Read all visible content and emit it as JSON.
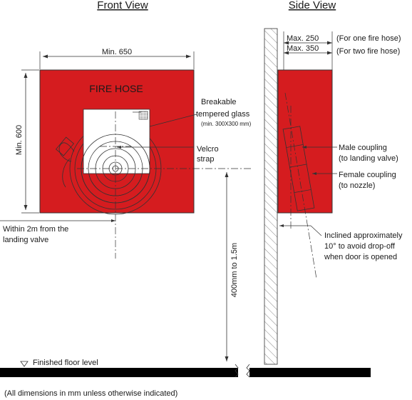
{
  "headings": {
    "front": "Front View",
    "side": "Side View"
  },
  "cabinet_label": "FIRE HOSE",
  "dimensions": {
    "width": "Min. 650",
    "height": "Min. 600",
    "depth_one": "Max. 250",
    "depth_two": "Max. 350",
    "depth_one_note": "(For one fire hose)",
    "depth_two_note": "(For two fire hose)",
    "mount_height": "400mm to 1.5m"
  },
  "annotations": {
    "glass_line1": "Breakable",
    "glass_line2": "tempered glass",
    "glass_line3": "(min. 300X300 mm)",
    "velcro_line1": "Velcro",
    "velcro_line2": "strap",
    "within_line1": "Within 2m from the",
    "within_line2": "landing valve",
    "male_line1": "Male coupling",
    "male_line2": "(to landing valve)",
    "female_line1": "Female coupling",
    "female_line2": "(to nozzle)",
    "incline_line1": "Inclined approximately",
    "incline_line2": "10° to avoid drop-off",
    "incline_line3": "when door is opened",
    "floor": "Finished floor level",
    "footnote": "(All dimensions in mm unless otherwise indicated)"
  },
  "colors": {
    "cabinet": "#d51c1f",
    "glass": "#ffffff",
    "floor": "#000000",
    "lines": "#333333"
  }
}
